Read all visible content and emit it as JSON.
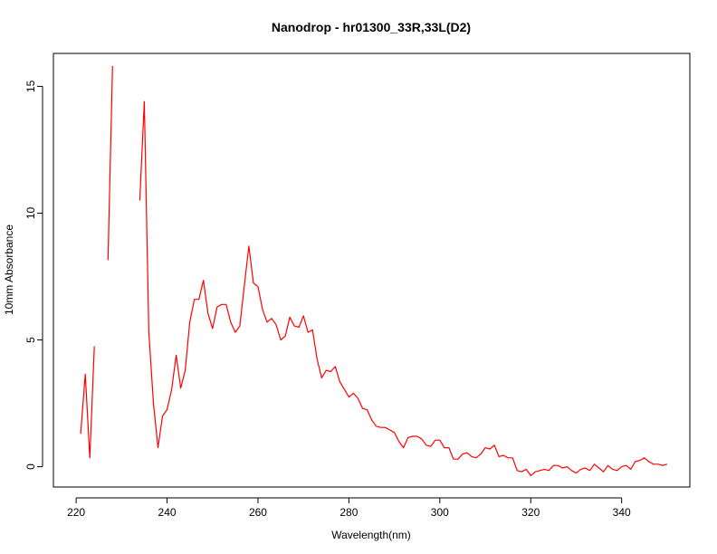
{
  "chart_data": {
    "type": "line",
    "title": "Nanodrop - hr01300_33R,33L(D2)",
    "xlabel": "Wavelength(nm)",
    "ylabel": "10mm Absorbance",
    "xlim": [
      215,
      355
    ],
    "ylim": [
      -0.8,
      16.3
    ],
    "x_ticks": [
      "220",
      "240",
      "260",
      "280",
      "300",
      "320",
      "340"
    ],
    "y_ticks": [
      "0",
      "5",
      "10",
      "15"
    ],
    "grid": false,
    "legend": "none",
    "series": [
      {
        "color": "#ff0000",
        "segments": [
          {
            "x": [
              221,
              222,
              223,
              224
            ],
            "y": [
              1.3,
              3.65,
              0.35,
              4.75
            ]
          },
          {
            "x": [
              227,
              228
            ],
            "y": [
              8.15,
              15.8
            ]
          },
          {
            "x": [
              234,
              235,
              236,
              237,
              238,
              239,
              240,
              241,
              242,
              243,
              244,
              245,
              246,
              247,
              248,
              249,
              250,
              251,
              252,
              253,
              254,
              255,
              256,
              257,
              258,
              259,
              260,
              261,
              262,
              263,
              264,
              265,
              266,
              267,
              268,
              269,
              270,
              271,
              272,
              273,
              274,
              275,
              276,
              277,
              278,
              279,
              280,
              281,
              282,
              283,
              284,
              285,
              286,
              287,
              288,
              289,
              290,
              291,
              292,
              293,
              294,
              295,
              296,
              297,
              298,
              299,
              300,
              301,
              302,
              303,
              304,
              305,
              306,
              307,
              308,
              309,
              310,
              311,
              312,
              313,
              314,
              315,
              316,
              317,
              318,
              319,
              320,
              321,
              322,
              323,
              324,
              325,
              326,
              327,
              328,
              329,
              330,
              331,
              332,
              333,
              334,
              335,
              336,
              337,
              338,
              339,
              340,
              341,
              342,
              343,
              344,
              345,
              346,
              347,
              348,
              349,
              350
            ],
            "y": [
              10.5,
              14.4,
              5.3,
              2.5,
              0.75,
              2.0,
              2.25,
              3.05,
              4.4,
              3.1,
              3.8,
              5.7,
              6.6,
              6.6,
              7.35,
              6.05,
              5.45,
              6.3,
              6.4,
              6.4,
              5.7,
              5.3,
              5.55,
              7.15,
              8.7,
              7.25,
              7.1,
              6.2,
              5.7,
              5.85,
              5.6,
              5.0,
              5.15,
              5.9,
              5.55,
              5.5,
              5.95,
              5.3,
              5.4,
              4.25,
              3.5,
              3.8,
              3.75,
              3.95,
              3.35,
              3.05,
              2.75,
              2.9,
              2.7,
              2.3,
              2.25,
              1.85,
              1.6,
              1.55,
              1.55,
              1.45,
              1.35,
              1.0,
              0.75,
              1.15,
              1.2,
              1.2,
              1.1,
              0.85,
              0.8,
              1.05,
              1.05,
              0.75,
              0.75,
              0.3,
              0.3,
              0.5,
              0.55,
              0.4,
              0.35,
              0.5,
              0.75,
              0.7,
              0.85,
              0.4,
              0.45,
              0.35,
              0.35,
              -0.15,
              -0.2,
              -0.1,
              -0.35,
              -0.2,
              -0.15,
              -0.1,
              -0.15,
              0.05,
              0.05,
              -0.05,
              0.0,
              -0.15,
              -0.25,
              -0.1,
              -0.05,
              -0.15,
              0.1,
              -0.05,
              -0.2,
              0.05,
              -0.1,
              -0.15,
              0.0,
              0.05,
              -0.1,
              0.2,
              0.25,
              0.35,
              0.2,
              0.1,
              0.1,
              0.05,
              0.1
            ]
          }
        ]
      }
    ]
  }
}
